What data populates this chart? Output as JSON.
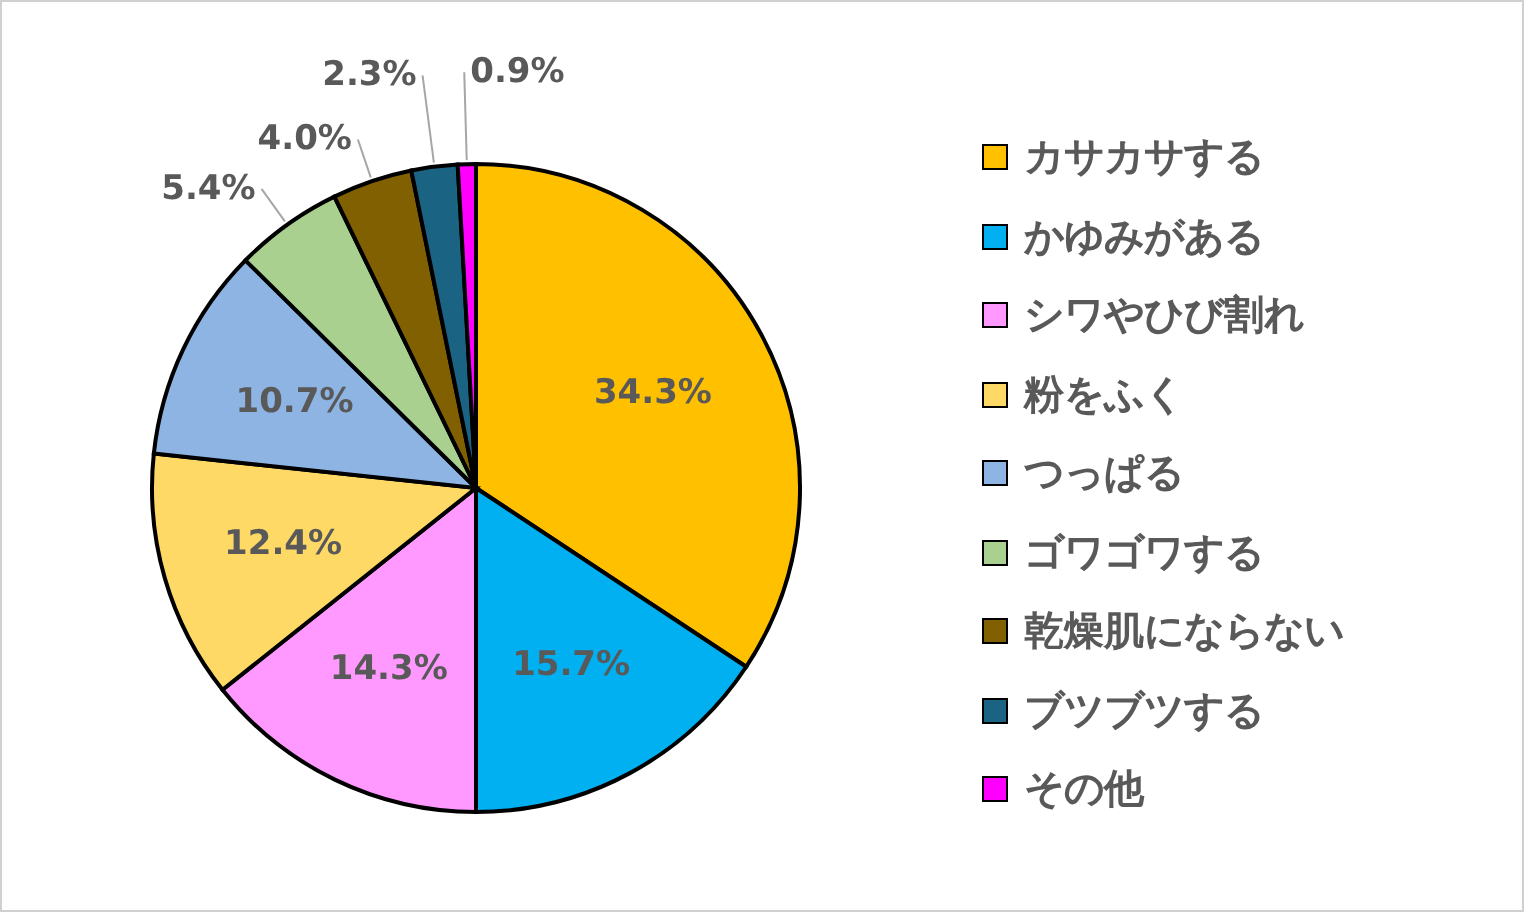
{
  "chart_data": {
    "type": "pie",
    "categories": [
      "カサカサする",
      "かゆみがある",
      "シワやひび割れ",
      "粉をふく",
      "つっぱる",
      "ゴワゴワする",
      "乾燥肌にならない",
      "ブツブツする",
      "その他"
    ],
    "values": [
      34.3,
      15.7,
      14.3,
      12.4,
      10.7,
      5.4,
      4.0,
      2.3,
      0.9
    ],
    "value_labels": [
      "34.3%",
      "15.7%",
      "14.3%",
      "12.4%",
      "10.7%",
      "5.4%",
      "4.0%",
      "2.3%",
      "0.9%"
    ],
    "colors": [
      "#ffc000",
      "#00b0f0",
      "#ff99ff",
      "#ffd966",
      "#8db4e2",
      "#a9d08e",
      "#806000",
      "#1b6382",
      "#ff00ff"
    ],
    "legend": "right"
  }
}
